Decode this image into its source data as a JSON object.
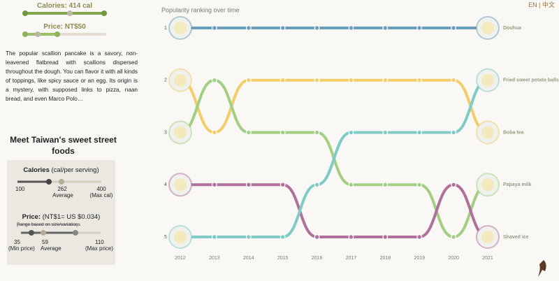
{
  "lang_switch": "EN | 中文",
  "selection": {
    "calories": "Calories: 414 cal",
    "price": "Price: NT$50",
    "description": "The popular scallion pancake is a savory, non-leavened flatbread with scallions dispersed throughout the dough. You can flavor it with all kinds of toppings, like spicy sauce or an egg. Its origin is a mystery, with supposed links to pizza, naan bread, and even Marco Polo…"
  },
  "legend": {
    "heading": "Meet Taiwan's sweet street foods",
    "calories_title": "Calories",
    "calories_unit": "(cal/per serving)",
    "calories_min": "100",
    "calories_avg": "262",
    "calories_avg_label": "Average",
    "calories_max": "400",
    "calories_max_label": "(Max cal)",
    "price_title": "Price:",
    "price_unit": "(NT$1= US $0.034)",
    "price_note": "Range based on size/variations",
    "price_min": "35",
    "price_min_label": "(Min price)",
    "price_avg": "59",
    "price_avg_label": "Average",
    "price_max": "110",
    "price_max_label": "(Max price)"
  },
  "chart_data": {
    "type": "bump",
    "title": "Popularity ranking over time",
    "x": [
      2012,
      2013,
      2014,
      2015,
      2016,
      2017,
      2018,
      2019,
      2020,
      2021
    ],
    "xlim": [
      2012,
      2021
    ],
    "ylim": [
      1,
      5
    ],
    "yticks": [
      1,
      2,
      3,
      4,
      5
    ],
    "y_inverted": true,
    "series": [
      {
        "name": "Douhua",
        "color": "#6a9dbd",
        "values": [
          1,
          1,
          1,
          1,
          1,
          1,
          1,
          1,
          1,
          1
        ]
      },
      {
        "name": "Boba tea",
        "color": "#f2cd6a",
        "values": [
          2,
          3,
          2,
          2,
          2,
          2,
          2,
          2,
          2,
          3
        ]
      },
      {
        "name": "Papaya milk",
        "color": "#a2cf84",
        "values": [
          3,
          2,
          3,
          3,
          3,
          4,
          4,
          4,
          5,
          4
        ]
      },
      {
        "name": "Shaved ice",
        "color": "#b0709c",
        "values": [
          4,
          4,
          4,
          4,
          5,
          5,
          5,
          5,
          4,
          5
        ]
      },
      {
        "name": "Fried sweet potato balls",
        "color": "#80cbc5",
        "values": [
          5,
          5,
          5,
          5,
          4,
          3,
          3,
          3,
          3,
          2
        ]
      }
    ]
  }
}
